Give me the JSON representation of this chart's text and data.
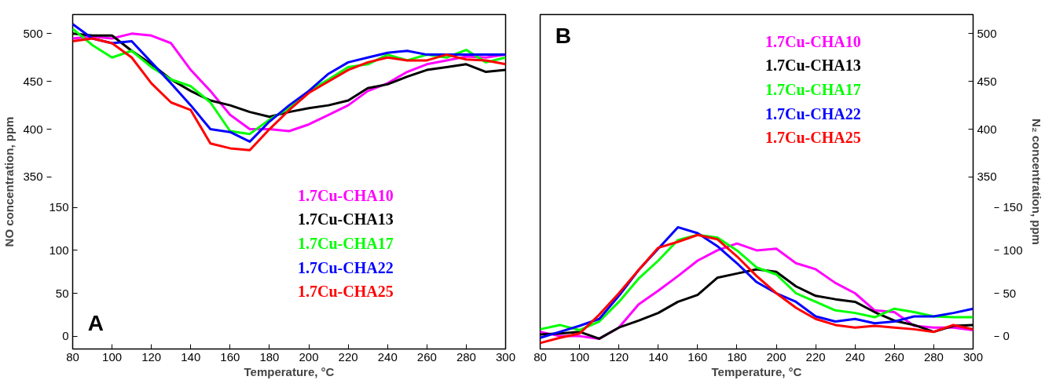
{
  "chart_data": [
    {
      "type": "line",
      "x": [
        80,
        90,
        100,
        110,
        120,
        130,
        140,
        150,
        160,
        170,
        180,
        190,
        200,
        210,
        220,
        230,
        240,
        250,
        260,
        270,
        280,
        290,
        300
      ],
      "xlabel": "Temperature, °C",
      "y2label": "NO concentration, ppm",
      "annotations": [
        "A"
      ],
      "xlim": [
        80,
        300
      ],
      "xticks": [
        80,
        100,
        120,
        140,
        160,
        180,
        200,
        220,
        240,
        260,
        280,
        300
      ],
      "ylim": [
        -15,
        375
      ],
      "yticks": [
        0,
        50,
        100,
        150
      ],
      "y2lim": [
        170,
        520
      ],
      "y2ticks": [
        350,
        400,
        450,
        500
      ],
      "grid": false,
      "legend": "bottom right",
      "marker": "none",
      "line_style": "solid",
      "series": [
        {
          "name": "1.7Cu-CHA10",
          "color": "#ff00ff",
          "axis": "y2",
          "values": [
            495,
            497,
            495,
            500,
            498,
            490,
            462,
            440,
            415,
            400,
            400,
            398,
            405,
            415,
            425,
            440,
            448,
            460,
            468,
            472,
            476,
            475,
            478
          ]
        },
        {
          "name": "1.7Cu-CHA13",
          "color": "#000000",
          "axis": "y2",
          "values": [
            500,
            498,
            498,
            482,
            468,
            452,
            440,
            430,
            425,
            418,
            413,
            418,
            422,
            425,
            430,
            443,
            447,
            455,
            462,
            465,
            468,
            460,
            462
          ]
        },
        {
          "name": "1.7Cu-CHA17",
          "color": "#00ff00",
          "axis": "y2",
          "values": [
            505,
            488,
            475,
            482,
            465,
            452,
            445,
            428,
            398,
            395,
            410,
            422,
            440,
            452,
            465,
            468,
            478,
            472,
            478,
            475,
            483,
            470,
            475
          ]
        },
        {
          "name": "1.7Cu-CHA22",
          "color": "#0000ff",
          "axis": "y2",
          "values": [
            510,
            495,
            490,
            492,
            470,
            448,
            425,
            400,
            397,
            387,
            408,
            425,
            440,
            458,
            470,
            475,
            480,
            482,
            478,
            478,
            478,
            478,
            478
          ]
        },
        {
          "name": "1.7Cu-CHA25",
          "color": "#ff0000",
          "axis": "y2",
          "values": [
            492,
            495,
            490,
            475,
            448,
            428,
            420,
            385,
            380,
            378,
            400,
            420,
            438,
            450,
            462,
            470,
            475,
            472,
            472,
            478,
            473,
            472,
            468
          ]
        }
      ]
    },
    {
      "type": "line",
      "x": [
        80,
        90,
        100,
        110,
        120,
        130,
        140,
        150,
        160,
        170,
        180,
        190,
        200,
        210,
        220,
        230,
        240,
        250,
        260,
        270,
        280,
        290,
        300
      ],
      "xlabel": "Temperature, °C",
      "ylabel": "N₂ concentration, ppm",
      "annotations": [
        "B"
      ],
      "xlim": [
        80,
        300
      ],
      "xticks": [
        80,
        100,
        120,
        140,
        160,
        180,
        200,
        220,
        240,
        260,
        280,
        300
      ],
      "ylim": [
        -15,
        375
      ],
      "yticks": [
        0,
        50,
        100,
        150
      ],
      "y2lim": [
        170,
        520
      ],
      "y2ticks": [
        350,
        400,
        450,
        500
      ],
      "grid": false,
      "legend": "top right",
      "marker": "none",
      "line_style": "solid",
      "series": [
        {
          "name": "1.7Cu-CHA10",
          "color": "#ff00ff",
          "values": [
            5,
            0,
            0,
            -3,
            10,
            37,
            53,
            70,
            88,
            100,
            108,
            100,
            102,
            85,
            78,
            62,
            50,
            30,
            28,
            12,
            10,
            10,
            7
          ]
        },
        {
          "name": "1.7Cu-CHA13",
          "color": "#000000",
          "values": [
            2,
            3,
            5,
            -3,
            10,
            18,
            27,
            40,
            48,
            68,
            73,
            78,
            75,
            58,
            47,
            43,
            40,
            28,
            18,
            13,
            5,
            12,
            13
          ]
        },
        {
          "name": "1.7Cu-CHA17",
          "color": "#00ff00",
          "values": [
            8,
            13,
            7,
            17,
            40,
            67,
            88,
            112,
            118,
            115,
            100,
            80,
            72,
            50,
            40,
            30,
            27,
            22,
            32,
            28,
            23,
            22,
            22
          ]
        },
        {
          "name": "1.7Cu-CHA22",
          "color": "#0000ff",
          "values": [
            -2,
            5,
            12,
            20,
            47,
            77,
            102,
            127,
            120,
            105,
            85,
            63,
            50,
            40,
            23,
            17,
            20,
            15,
            17,
            23,
            23,
            27,
            32
          ]
        },
        {
          "name": "1.7Cu-CHA25",
          "color": "#ff0000",
          "values": [
            -8,
            -2,
            3,
            25,
            50,
            77,
            103,
            110,
            118,
            113,
            93,
            70,
            50,
            33,
            20,
            13,
            10,
            12,
            10,
            8,
            5,
            13,
            8
          ]
        }
      ]
    }
  ]
}
